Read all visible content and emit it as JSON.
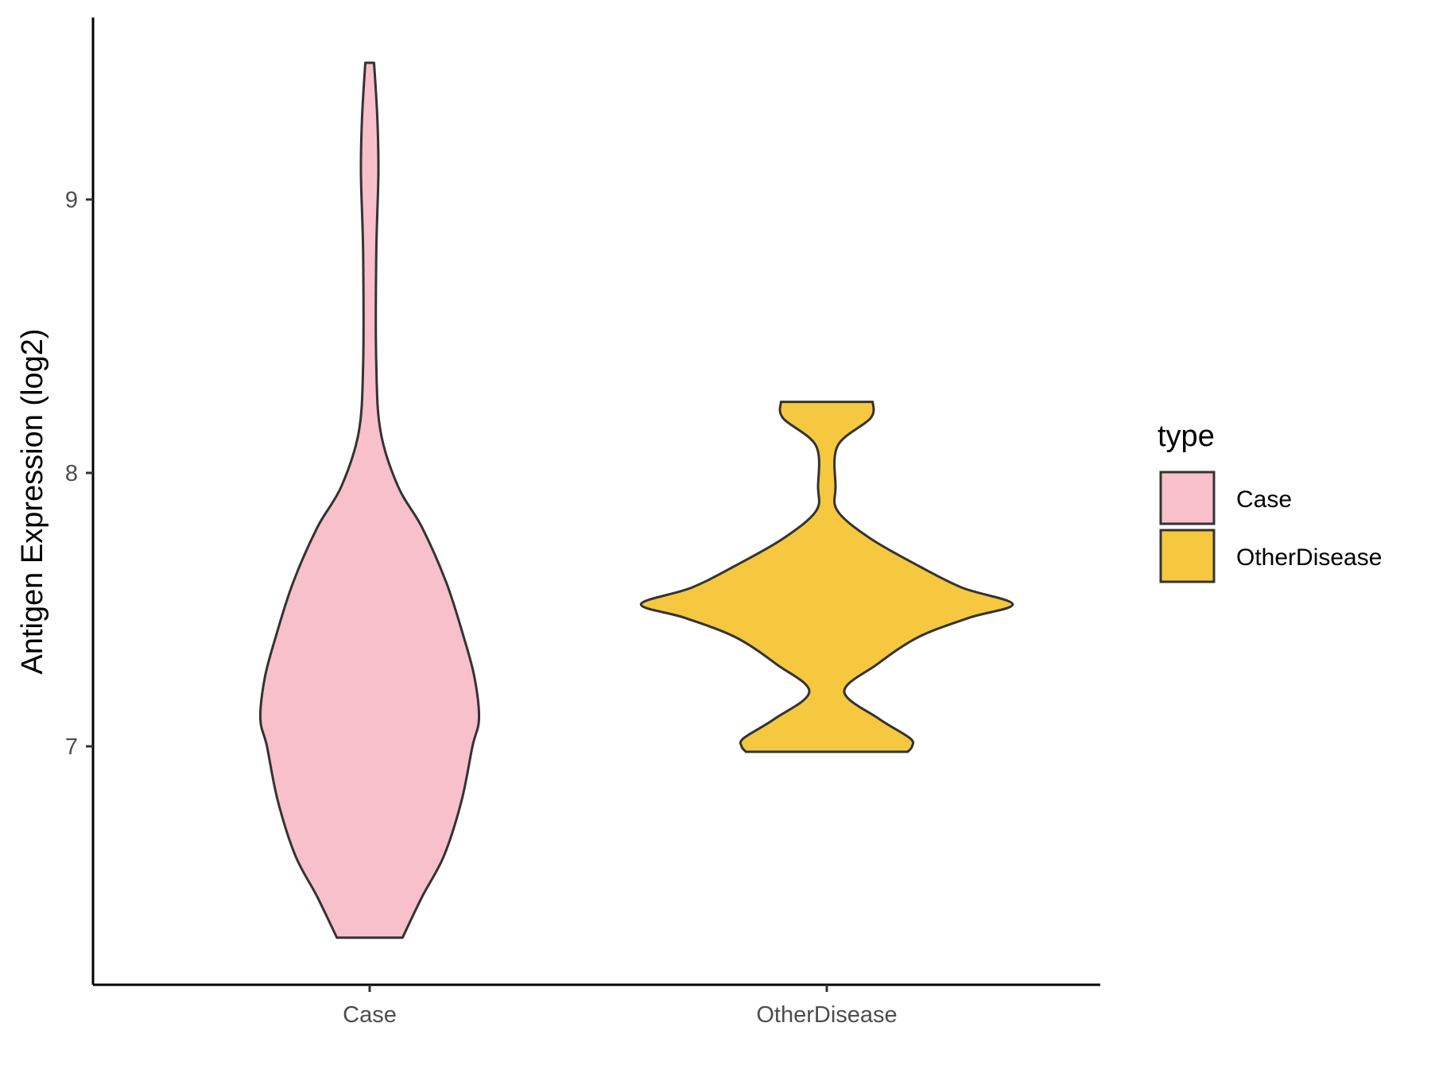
{
  "chart_data": {
    "type": "violin",
    "title": "",
    "xlabel": "",
    "ylabel": "Antigen Expression (log2)",
    "categories": [
      "Case",
      "OtherDisease"
    ],
    "y_ticks": [
      "7",
      "8",
      "9"
    ],
    "ylim": [
      6.2,
      9.7
    ],
    "legend": {
      "title": "type",
      "placement": "right",
      "entries": [
        {
          "label": "Case",
          "color": "#f7c0cb"
        },
        {
          "label": "OtherDisease",
          "color": "#f6c83f"
        }
      ]
    },
    "series": [
      {
        "name": "Case",
        "color": "#f7c0cb",
        "range": [
          6.3,
          9.5
        ],
        "density_profile": [
          {
            "y": 6.3,
            "w": 0.15
          },
          {
            "y": 6.45,
            "w": 0.24
          },
          {
            "y": 6.6,
            "w": 0.34
          },
          {
            "y": 6.8,
            "w": 0.42
          },
          {
            "y": 7.0,
            "w": 0.47
          },
          {
            "y": 7.1,
            "w": 0.5
          },
          {
            "y": 7.25,
            "w": 0.48
          },
          {
            "y": 7.4,
            "w": 0.43
          },
          {
            "y": 7.6,
            "w": 0.35
          },
          {
            "y": 7.8,
            "w": 0.24
          },
          {
            "y": 7.95,
            "w": 0.13
          },
          {
            "y": 8.15,
            "w": 0.05
          },
          {
            "y": 8.4,
            "w": 0.03
          },
          {
            "y": 8.8,
            "w": 0.03
          },
          {
            "y": 9.1,
            "w": 0.04
          },
          {
            "y": 9.3,
            "w": 0.035
          },
          {
            "y": 9.5,
            "w": 0.02
          }
        ]
      },
      {
        "name": "OtherDisease",
        "color": "#f6c83f",
        "range": [
          6.98,
          8.26
        ],
        "density_profile": [
          {
            "y": 6.98,
            "w": 0.37
          },
          {
            "y": 7.0,
            "w": 0.39
          },
          {
            "y": 7.03,
            "w": 0.38
          },
          {
            "y": 7.1,
            "w": 0.24
          },
          {
            "y": 7.2,
            "w": 0.08
          },
          {
            "y": 7.3,
            "w": 0.23
          },
          {
            "y": 7.4,
            "w": 0.42
          },
          {
            "y": 7.47,
            "w": 0.65
          },
          {
            "y": 7.52,
            "w": 0.85
          },
          {
            "y": 7.58,
            "w": 0.62
          },
          {
            "y": 7.66,
            "w": 0.42
          },
          {
            "y": 7.76,
            "w": 0.2
          },
          {
            "y": 7.86,
            "w": 0.05
          },
          {
            "y": 7.95,
            "w": 0.04
          },
          {
            "y": 8.1,
            "w": 0.05
          },
          {
            "y": 8.2,
            "w": 0.2
          },
          {
            "y": 8.26,
            "w": 0.21
          }
        ]
      }
    ]
  }
}
